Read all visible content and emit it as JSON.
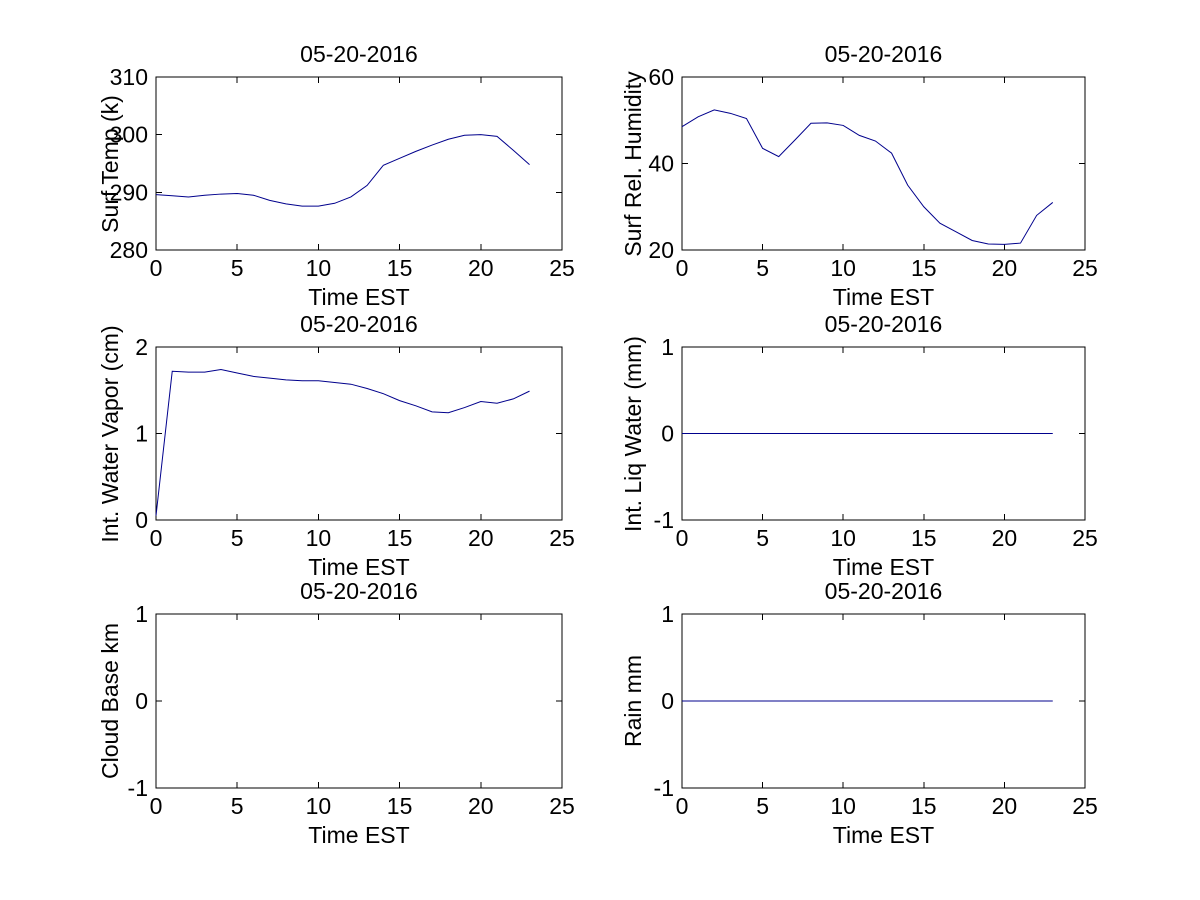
{
  "figure": {
    "background": "#ffffff",
    "axis_color": "#000000",
    "line_color": "#00008C"
  },
  "chart_data": [
    {
      "type": "line",
      "title": "05-20-2016",
      "xlabel": "Time EST",
      "ylabel": "Surf Temp (k)",
      "xlim": [
        0,
        25
      ],
      "ylim": [
        280,
        310
      ],
      "xticks": [
        0,
        5,
        10,
        15,
        20,
        25
      ],
      "yticks": [
        280,
        290,
        300,
        310
      ],
      "grid": false,
      "legend": null,
      "x": [
        0,
        1,
        2,
        3,
        4,
        5,
        6,
        7,
        8,
        9,
        10,
        11,
        12,
        13,
        14,
        15,
        16,
        17,
        18,
        19,
        20,
        21,
        22,
        23
      ],
      "y": [
        289.6,
        289.4,
        289.2,
        289.5,
        289.7,
        289.8,
        289.5,
        288.6,
        288.0,
        287.6,
        287.6,
        288.1,
        289.2,
        291.2,
        294.7,
        295.9,
        297.1,
        298.2,
        299.2,
        299.9,
        300.0,
        299.7,
        297.3,
        294.8
      ]
    },
    {
      "type": "line",
      "title": "05-20-2016",
      "xlabel": "Time EST",
      "ylabel": "Surf Rel. Humidity",
      "xlim": [
        0,
        25
      ],
      "ylim": [
        20,
        60
      ],
      "xticks": [
        0,
        5,
        10,
        15,
        20,
        25
      ],
      "yticks": [
        20,
        40,
        60
      ],
      "grid": false,
      "legend": null,
      "x": [
        0,
        1,
        2,
        3,
        4,
        5,
        6,
        7,
        8,
        9,
        10,
        11,
        12,
        13,
        14,
        15,
        16,
        17,
        18,
        19,
        20,
        21,
        22,
        23
      ],
      "y": [
        48.5,
        50.8,
        52.4,
        51.6,
        50.4,
        43.5,
        41.6,
        45.4,
        49.3,
        49.4,
        48.8,
        46.5,
        45.2,
        42.4,
        35.0,
        30.0,
        26.2,
        24.2,
        22.2,
        21.4,
        21.3,
        21.6,
        28.0,
        31.0
      ]
    },
    {
      "type": "line",
      "title": "05-20-2016",
      "xlabel": "Time EST",
      "ylabel": "Int. Water Vapor (cm)",
      "xlim": [
        0,
        25
      ],
      "ylim": [
        0,
        2
      ],
      "xticks": [
        0,
        5,
        10,
        15,
        20,
        25
      ],
      "yticks": [
        0,
        1,
        2
      ],
      "grid": false,
      "legend": null,
      "x": [
        0,
        1,
        2,
        3,
        4,
        5,
        6,
        7,
        8,
        9,
        10,
        11,
        12,
        13,
        14,
        15,
        16,
        17,
        18,
        19,
        20,
        21,
        22,
        23
      ],
      "y": [
        0.05,
        1.72,
        1.71,
        1.71,
        1.74,
        1.7,
        1.66,
        1.64,
        1.62,
        1.61,
        1.61,
        1.59,
        1.57,
        1.52,
        1.46,
        1.38,
        1.32,
        1.25,
        1.24,
        1.3,
        1.37,
        1.35,
        1.4,
        1.49
      ]
    },
    {
      "type": "line",
      "title": "05-20-2016",
      "xlabel": "Time EST",
      "ylabel": "Int. Liq Water (mm)",
      "xlim": [
        0,
        25
      ],
      "ylim": [
        -1,
        1
      ],
      "xticks": [
        0,
        5,
        10,
        15,
        20,
        25
      ],
      "yticks": [
        -1,
        0,
        1
      ],
      "grid": false,
      "legend": null,
      "x": [
        0,
        1,
        2,
        3,
        4,
        5,
        6,
        7,
        8,
        9,
        10,
        11,
        12,
        13,
        14,
        15,
        16,
        17,
        18,
        19,
        20,
        21,
        22,
        23
      ],
      "y": [
        0,
        0,
        0,
        0,
        0,
        0,
        0,
        0,
        0,
        0,
        0,
        0,
        0,
        0,
        0,
        0,
        0,
        0,
        0,
        0,
        0,
        0,
        0,
        0
      ]
    },
    {
      "type": "line",
      "title": "05-20-2016",
      "xlabel": "Time EST",
      "ylabel": "Cloud Base km",
      "xlim": [
        0,
        25
      ],
      "ylim": [
        -1,
        1
      ],
      "xticks": [
        0,
        5,
        10,
        15,
        20,
        25
      ],
      "yticks": [
        -1,
        0,
        1
      ],
      "grid": false,
      "legend": null,
      "x": [],
      "y": []
    },
    {
      "type": "line",
      "title": "05-20-2016",
      "xlabel": "Time EST",
      "ylabel": "Rain mm",
      "xlim": [
        0,
        25
      ],
      "ylim": [
        -1,
        1
      ],
      "xticks": [
        0,
        5,
        10,
        15,
        20,
        25
      ],
      "yticks": [
        -1,
        0,
        1
      ],
      "grid": false,
      "legend": null,
      "x": [
        0,
        1,
        2,
        3,
        4,
        5,
        6,
        7,
        8,
        9,
        10,
        11,
        12,
        13,
        14,
        15,
        16,
        17,
        18,
        19,
        20,
        21,
        22,
        23
      ],
      "y": [
        0,
        0,
        0,
        0,
        0,
        0,
        0,
        0,
        0,
        0,
        0,
        0,
        0,
        0,
        0,
        0,
        0,
        0,
        0,
        0,
        0,
        0,
        0,
        0
      ]
    }
  ]
}
